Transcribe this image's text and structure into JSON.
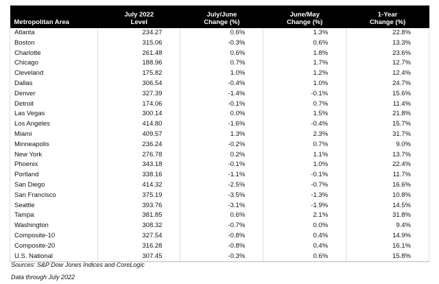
{
  "table": {
    "header": [
      [
        "Metropolitan Area"
      ],
      [
        "July 2022",
        "Level"
      ],
      [
        "July/June",
        "Change (%)"
      ],
      [
        "June/May",
        "Change (%)"
      ],
      [
        "1-Year",
        "Change (%)"
      ]
    ],
    "rows": [
      [
        "Atlanta",
        "234.27",
        "0.6%",
        "1.3%",
        "22.8%"
      ],
      [
        "Boston",
        "315.06",
        "-0.3%",
        "0.6%",
        "13.3%"
      ],
      [
        "Charlotte",
        "261.48",
        "0.6%",
        "1.8%",
        "23.6%"
      ],
      [
        "Chicago",
        "188.96",
        "0.7%",
        "1.7%",
        "12.7%"
      ],
      [
        "Cleveland",
        "175.82",
        "1.0%",
        "1.2%",
        "12.4%"
      ],
      [
        "Dallas",
        "306.54",
        "-0.4%",
        "1.0%",
        "24.7%"
      ],
      [
        "Denver",
        "327.39",
        "-1.4%",
        "-0.1%",
        "15.6%"
      ],
      [
        "Detroit",
        "174.06",
        "-0.1%",
        "0.7%",
        "11.4%"
      ],
      [
        "Las Vegas",
        "300.14",
        "0.0%",
        "1.5%",
        "21.8%"
      ],
      [
        "Los Angeles",
        "414.80",
        "-1.6%",
        "-0.4%",
        "15.7%"
      ],
      [
        "Miami",
        "409.57",
        "1.3%",
        "2.3%",
        "31.7%"
      ],
      [
        "Minneapolis",
        "236.24",
        "-0.2%",
        "0.7%",
        "9.0%"
      ],
      [
        "New York",
        "276.78",
        "0.2%",
        "1.1%",
        "13.7%"
      ],
      [
        "Phoenix",
        "343.18",
        "-0.1%",
        "1.0%",
        "22.4%"
      ],
      [
        "Portland",
        "338.16",
        "-1.1%",
        "-0.1%",
        "11.7%"
      ],
      [
        "San Diego",
        "414.32",
        "-2.5%",
        "-0.7%",
        "16.6%"
      ],
      [
        "San Francisco",
        "375.19",
        "-3.5%",
        "-1.3%",
        "10.8%"
      ],
      [
        "Seattle",
        "393.76",
        "-3.1%",
        "-1.9%",
        "14.5%"
      ],
      [
        "Tampa",
        "381.85",
        "0.6%",
        "2.1%",
        "31.8%"
      ],
      [
        "Washington",
        "308.32",
        "-0.7%",
        "0.0%",
        "9.4%"
      ],
      [
        "Composite-10",
        "327.54",
        "-0.8%",
        "0.4%",
        "14.9%"
      ],
      [
        "Composite-20",
        "316.28",
        "-0.8%",
        "0.4%",
        "16.1%"
      ],
      [
        "U.S. National",
        "307.45",
        "-0.3%",
        "0.6%",
        "15.8%"
      ]
    ]
  },
  "notes": [
    "Sources: S&P Dow Jones Indices and CoreLogic",
    "Data through July 2022"
  ]
}
